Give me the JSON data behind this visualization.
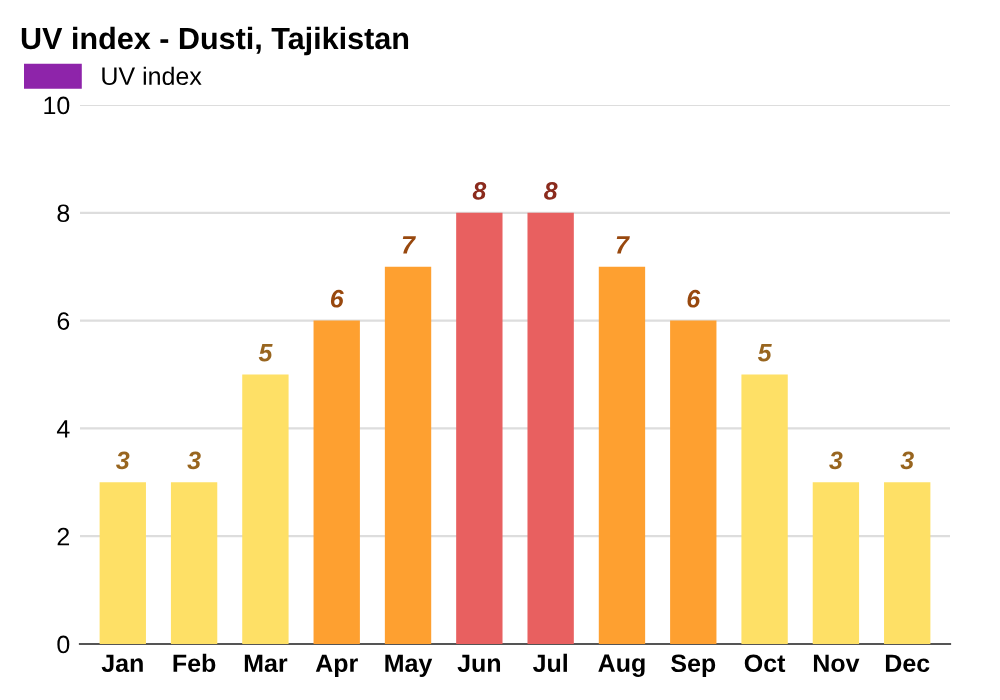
{
  "chart_data": {
    "type": "bar",
    "title": "UV index - Dusti, Tajikistan",
    "categories": [
      "Jan",
      "Feb",
      "Mar",
      "Apr",
      "May",
      "Jun",
      "Jul",
      "Aug",
      "Sep",
      "Oct",
      "Nov",
      "Dec"
    ],
    "series": [
      {
        "name": "UV index",
        "color": "#8e24aa",
        "values": [
          3,
          3,
          5,
          6,
          7,
          8,
          8,
          7,
          6,
          5,
          3,
          3
        ],
        "colors": [
          "#fee066",
          "#fee066",
          "#fee066",
          "#fea030",
          "#fea030",
          "#e86060",
          "#e86060",
          "#fea030",
          "#fea030",
          "#fee066",
          "#fee066",
          "#fee066"
        ]
      }
    ],
    "ylim": [
      0,
      10
    ],
    "yticks": [
      0,
      2,
      4,
      6,
      8,
      10
    ],
    "grid": "y",
    "legend": "top left",
    "data_labels": true
  }
}
